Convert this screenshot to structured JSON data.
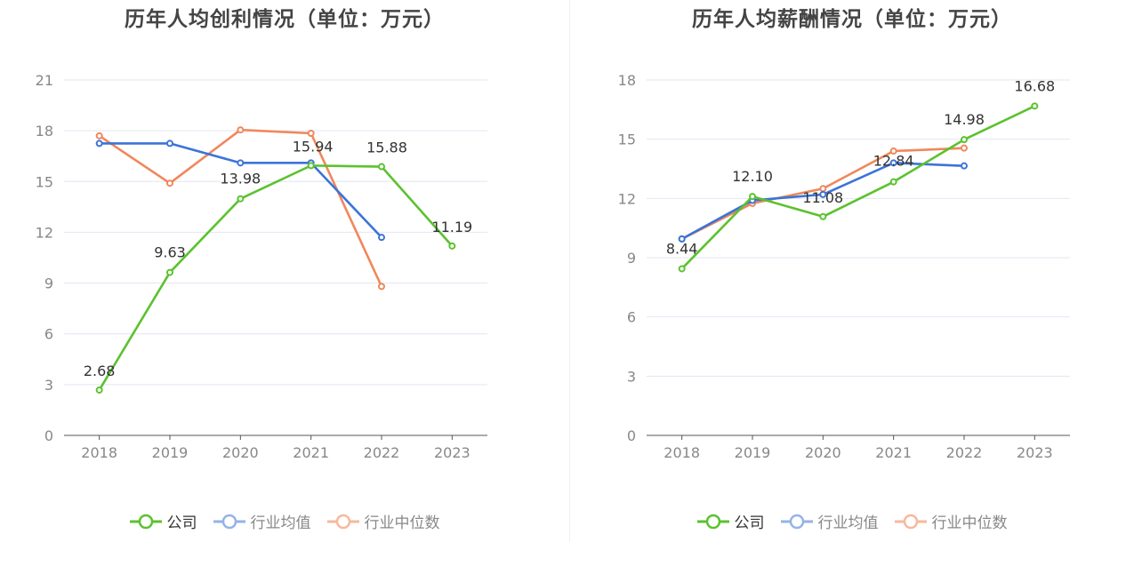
{
  "colors": {
    "company": "#5bc22e",
    "avg": "#3b74d8",
    "median": "#f0875b",
    "avg_legend": "#94b3e6",
    "median_legend": "#f7b89d",
    "grid": "#e3e6f2",
    "axis": "#555555"
  },
  "legend": [
    {
      "key": "company",
      "label": "公司",
      "label_color": "#333333"
    },
    {
      "key": "avg",
      "label": "行业均值",
      "label_color": "#888888"
    },
    {
      "key": "median",
      "label": "行业中位数",
      "label_color": "#888888"
    }
  ],
  "chart_data": [
    {
      "type": "line",
      "title": "历年人均创利情况（单位：万元）",
      "categories": [
        "2018",
        "2019",
        "2020",
        "2021",
        "2022",
        "2023"
      ],
      "ylim": [
        0,
        21
      ],
      "yticks": [
        "0",
        "3",
        "6",
        "9",
        "12",
        "15",
        "18",
        "21"
      ],
      "grid": true,
      "legend_position": "bottom",
      "series": [
        {
          "name": "公司",
          "key": "company",
          "values": [
            2.68,
            9.63,
            13.98,
            15.94,
            15.88,
            11.19
          ],
          "labels": [
            "2.68",
            "9.63",
            "13.98",
            "15.94",
            "15.88",
            "11.19"
          ]
        },
        {
          "name": "行业均值",
          "key": "avg",
          "values": [
            17.25,
            17.25,
            16.1,
            16.1,
            11.7,
            null
          ]
        },
        {
          "name": "行业中位数",
          "key": "median",
          "values": [
            17.7,
            14.9,
            18.05,
            17.85,
            8.8,
            null
          ]
        }
      ]
    },
    {
      "type": "line",
      "title": "历年人均薪酬情况（单位：万元）",
      "categories": [
        "2018",
        "2019",
        "2020",
        "2021",
        "2022",
        "2023"
      ],
      "ylim": [
        0,
        18
      ],
      "yticks": [
        "0",
        "3",
        "6",
        "9",
        "12",
        "15",
        "18"
      ],
      "grid": true,
      "legend_position": "bottom",
      "series": [
        {
          "name": "公司",
          "key": "company",
          "values": [
            8.44,
            12.1,
            11.08,
            12.84,
            14.98,
            16.68
          ],
          "labels": [
            "8.44",
            "12.10",
            "11.08",
            "12.84",
            "14.98",
            "16.68"
          ]
        },
        {
          "name": "行业均值",
          "key": "avg",
          "values": [
            9.95,
            11.9,
            12.2,
            13.8,
            13.65,
            null
          ]
        },
        {
          "name": "行业中位数",
          "key": "median",
          "values": [
            9.95,
            11.75,
            12.5,
            14.4,
            14.55,
            null
          ]
        }
      ]
    }
  ]
}
